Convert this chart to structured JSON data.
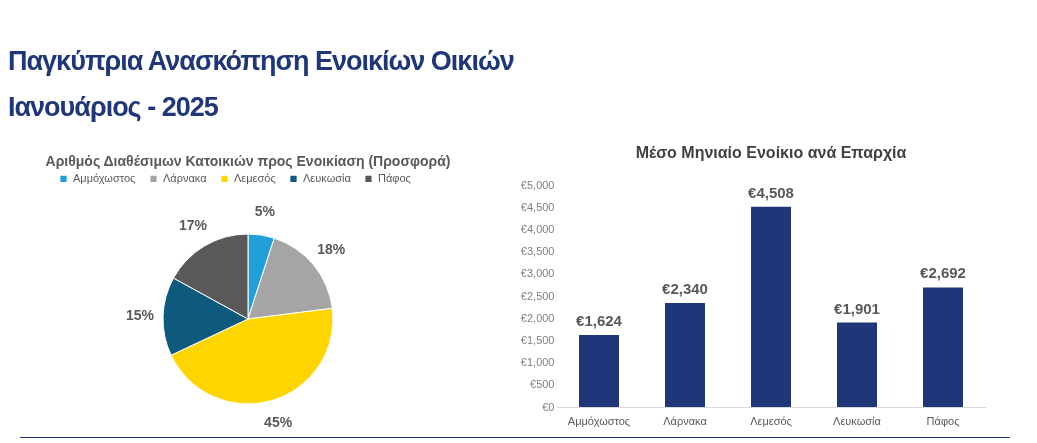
{
  "chart_data": [
    {
      "type": "other",
      "title": "Παγκύπρια Ανασκόπηση Ενοικίων Οικιών",
      "subtitle": "Ιανουάριος - 2025"
    },
    {
      "type": "pie",
      "title": "Αριθμός Διαθέσιμων Κατοικιών προς Ενοικίαση (Προσφορά)",
      "categories": [
        "Αμμόχωστος",
        "Λάρνακα",
        "Λεμεσός",
        "Λευκωσία",
        "Πάφος"
      ],
      "values": [
        5,
        18,
        45,
        15,
        17
      ],
      "colors": [
        "#1fa0d8",
        "#a5a5a5",
        "#ffd500",
        "#0e5a7c",
        "#595959"
      ],
      "value_labels": [
        "5%",
        "18%",
        "45%",
        "15%",
        "17%"
      ],
      "legend": "top"
    },
    {
      "type": "bar",
      "title": "Μέσο Μηνιαίο Ενοίκιο ανά Επαρχία",
      "categories": [
        "Αμμόχωστος",
        "Λάρνακα",
        "Λεμεσός",
        "Λευκωσία",
        "Πάφος"
      ],
      "series": [
        {
          "color": "#1f3778",
          "values": [
            1624,
            2340,
            4508,
            1901,
            2692
          ]
        }
      ],
      "value_labels": [
        "€1,624",
        "€2,340",
        "€4,508",
        "€1,901",
        "€2,692"
      ],
      "ylim": [
        0,
        5000
      ],
      "yticks": [
        {
          "value": 0,
          "label": "€0"
        },
        {
          "value": 500,
          "label": "€500"
        },
        {
          "value": 1000,
          "label": "€1,000"
        },
        {
          "value": 1500,
          "label": "€1,500"
        },
        {
          "value": 2000,
          "label": "€2,000"
        },
        {
          "value": 2500,
          "label": "€2,500"
        },
        {
          "value": 3000,
          "label": "€3,000"
        },
        {
          "value": 3500,
          "label": "€3,500"
        },
        {
          "value": 4000,
          "label": "€4,000"
        },
        {
          "value": 4500,
          "label": "€4,500"
        },
        {
          "value": 5000,
          "label": "€5,000"
        }
      ],
      "grid": false
    }
  ]
}
